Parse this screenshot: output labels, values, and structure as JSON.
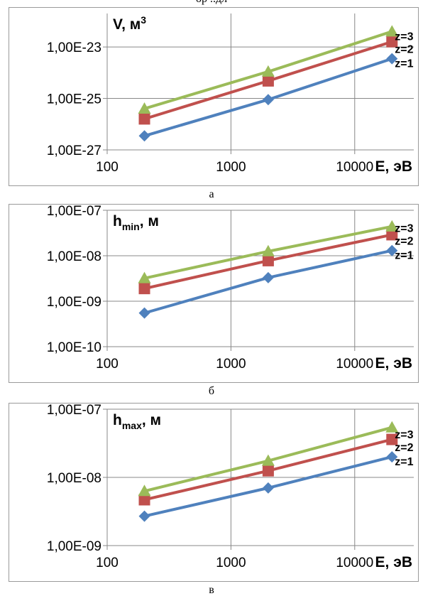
{
  "header_fragment": "ор ..дл",
  "colors": {
    "z1": "#4F81BD",
    "z2": "#C0504D",
    "z3": "#9BBB59",
    "grid": "#888888"
  },
  "chart_data": [
    {
      "type": "line",
      "log_x": true,
      "log_y": true,
      "ylabel": "V, м",
      "ylabel_sup": "3",
      "ylabel_sub": "",
      "ylabel_tail": "",
      "xlabel": "E, эВ",
      "caption": "а",
      "grid": true,
      "xlim": [
        100,
        30000
      ],
      "ylim": [
        1e-27,
        2e-22
      ],
      "x_ticks": [
        100,
        1000,
        10000
      ],
      "x_tick_labels": [
        "100",
        "1000",
        "10000"
      ],
      "y_ticks": [
        1e-27,
        1e-25,
        1e-23
      ],
      "y_tick_labels": [
        "1,00E-27",
        "1,00E-25",
        "1,00E-23"
      ],
      "x": [
        200,
        2000,
        20000
      ],
      "series": [
        {
          "name": "z=1",
          "values": [
            3.5e-27,
            9e-26,
            3.5e-24
          ]
        },
        {
          "name": "z=2",
          "values": [
            1.6e-26,
            4.8e-25,
            1.6e-23
          ]
        },
        {
          "name": "z=3",
          "values": [
            4e-26,
            1.1e-24,
            4e-23
          ]
        }
      ]
    },
    {
      "type": "line",
      "log_x": true,
      "log_y": true,
      "ylabel": "h",
      "ylabel_sup": "",
      "ylabel_sub": "min",
      "ylabel_tail": ", м",
      "xlabel": "E, эВ",
      "caption": "б",
      "grid": true,
      "xlim": [
        100,
        30000
      ],
      "ylim": [
        1e-10,
        1e-07
      ],
      "x_ticks": [
        100,
        1000,
        10000
      ],
      "x_tick_labels": [
        "100",
        "1000",
        "10000"
      ],
      "y_ticks": [
        1e-10,
        1e-09,
        1e-08,
        1e-07
      ],
      "y_tick_labels": [
        "1,00E-10",
        "1,00E-09",
        "1,00E-08",
        "1,00E-07"
      ],
      "x": [
        200,
        2000,
        20000
      ],
      "series": [
        {
          "name": "z=1",
          "values": [
            5.5e-10,
            3.3e-09,
            1.3e-08
          ]
        },
        {
          "name": "z=2",
          "values": [
            1.9e-09,
            7.8e-09,
            2.9e-08
          ]
        },
        {
          "name": "z=3",
          "values": [
            3.2e-09,
            1.25e-08,
            4.4e-08
          ]
        }
      ]
    },
    {
      "type": "line",
      "log_x": true,
      "log_y": true,
      "ylabel": "h",
      "ylabel_sup": "",
      "ylabel_sub": "max",
      "ylabel_tail": ", м",
      "xlabel": "E, эВ",
      "caption": "в",
      "grid": true,
      "xlim": [
        100,
        30000
      ],
      "ylim": [
        1e-09,
        1e-07
      ],
      "x_ticks": [
        100,
        1000,
        10000
      ],
      "x_tick_labels": [
        "100",
        "1000",
        "10000"
      ],
      "y_ticks": [
        1e-09,
        1e-08,
        1e-07
      ],
      "y_tick_labels": [
        "1,00E-09",
        "1,00E-08",
        "1,00E-07"
      ],
      "x": [
        200,
        2000,
        20000
      ],
      "series": [
        {
          "name": "z=1",
          "values": [
            2.7e-09,
            7e-09,
            2e-08
          ]
        },
        {
          "name": "z=2",
          "values": [
            4.7e-09,
            1.25e-08,
            3.6e-08
          ]
        },
        {
          "name": "z=3",
          "values": [
            6.3e-09,
            1.75e-08,
            5.4e-08
          ]
        }
      ]
    }
  ]
}
